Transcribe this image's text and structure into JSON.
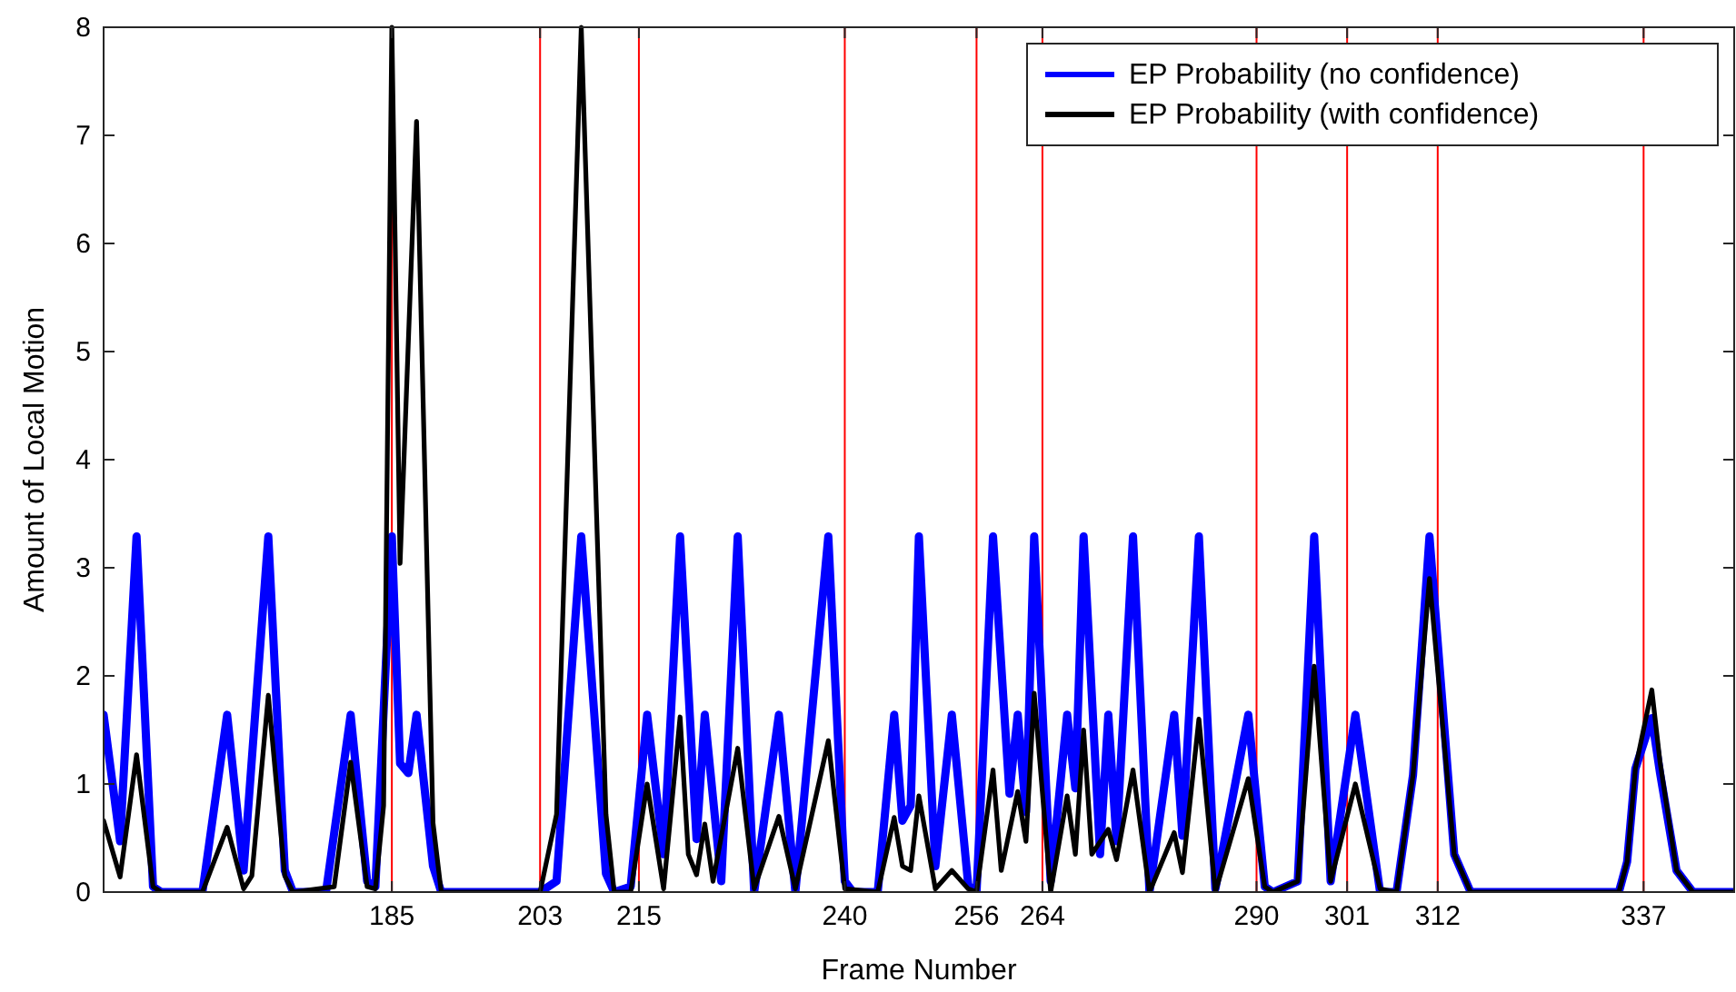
{
  "chart_data": {
    "type": "line",
    "xlabel": "Frame Number",
    "ylabel": "Amount of Local Motion",
    "xlim": [
      150,
      348
    ],
    "xticks": [
      185,
      203,
      215,
      240,
      256,
      264,
      290,
      301,
      312,
      337
    ],
    "ylim": [
      0,
      8
    ],
    "yticks": [
      0,
      1,
      2,
      3,
      4,
      5,
      6,
      7,
      8
    ],
    "grid": false,
    "legend": "top right",
    "marker": "none",
    "line_style": "solid",
    "ref_lines": [
      {
        "axis": "x",
        "value": 185,
        "color": "#ff0000"
      },
      {
        "axis": "x",
        "value": 203,
        "color": "#ff0000"
      },
      {
        "axis": "x",
        "value": 215,
        "color": "#ff0000"
      },
      {
        "axis": "x",
        "value": 240,
        "color": "#ff0000"
      },
      {
        "axis": "x",
        "value": 256,
        "color": "#ff0000"
      },
      {
        "axis": "x",
        "value": 264,
        "color": "#ff0000"
      },
      {
        "axis": "x",
        "value": 290,
        "color": "#ff0000"
      },
      {
        "axis": "x",
        "value": 301,
        "color": "#ff0000"
      },
      {
        "axis": "x",
        "value": 312,
        "color": "#ff0000"
      },
      {
        "axis": "x",
        "value": 337,
        "color": "#ff0000"
      }
    ],
    "series": [
      {
        "name": "EP Probability (no confidence)",
        "color": "#0000ff",
        "x": [
          150,
          152,
          154,
          156,
          157,
          162,
          165,
          167,
          170,
          172,
          173,
          177,
          180,
          182,
          183,
          185,
          186,
          187,
          188,
          190,
          191,
          203,
          205,
          208,
          211,
          212,
          214,
          216,
          218,
          220,
          222,
          223,
          225,
          227,
          229,
          232,
          234,
          238,
          240,
          241,
          244,
          246,
          247,
          248,
          249,
          251,
          253,
          255,
          256,
          258,
          260,
          261,
          262,
          263,
          265,
          267,
          268,
          269,
          271,
          272,
          273,
          275,
          277,
          280,
          281,
          283,
          285,
          289,
          291,
          292,
          295,
          297,
          299,
          302,
          305,
          307,
          309,
          311,
          314,
          316,
          334,
          335,
          336,
          338,
          339,
          341,
          343,
          348
        ],
        "values": [
          1.64,
          0.47,
          3.29,
          0.05,
          0,
          0,
          1.64,
          0.2,
          3.29,
          0.2,
          0,
          0,
          1.64,
          0.1,
          0.05,
          3.29,
          1.19,
          1.1,
          1.64,
          0.24,
          0,
          0,
          0.1,
          3.29,
          0.17,
          0,
          0.05,
          1.64,
          0.35,
          3.29,
          0.49,
          1.64,
          0.1,
          3.29,
          0,
          1.64,
          0,
          3.29,
          0.1,
          0,
          0,
          1.64,
          0.66,
          0.8,
          3.29,
          0.24,
          1.64,
          0.06,
          0,
          3.29,
          0.91,
          1.64,
          0.74,
          3.29,
          0.1,
          1.64,
          0.96,
          3.29,
          0.35,
          1.64,
          0.47,
          3.29,
          0,
          1.64,
          0.52,
          3.29,
          0.03,
          1.64,
          0.05,
          0,
          0.1,
          3.29,
          0.1,
          1.64,
          0,
          0,
          1.08,
          3.29,
          0.35,
          0,
          0,
          0.28,
          1.14,
          1.61,
          1.1,
          0.2,
          0,
          0
        ]
      },
      {
        "name": "EP Probability (with confidence)",
        "color": "#000000",
        "x": [
          150,
          152,
          154,
          156,
          157,
          162,
          165,
          167,
          168,
          170,
          172,
          173,
          178,
          180,
          182,
          183,
          184,
          185,
          186,
          188,
          190,
          191,
          203,
          205,
          208,
          211,
          212,
          214,
          216,
          218,
          220,
          221,
          222,
          223,
          224,
          227,
          229,
          232,
          234,
          238,
          240,
          244,
          246,
          247,
          248,
          249,
          251,
          253,
          255,
          256,
          258,
          259,
          261,
          262,
          263,
          265,
          267,
          268,
          269,
          270,
          272,
          273,
          275,
          277,
          280,
          281,
          283,
          285,
          289,
          291,
          292,
          295,
          297,
          299,
          302,
          305,
          307,
          309,
          311,
          314,
          316,
          334,
          335,
          336,
          338,
          339,
          341,
          343,
          348
        ],
        "values": [
          0.66,
          0.14,
          1.27,
          0.05,
          0,
          0,
          0.6,
          0.03,
          0.15,
          1.82,
          0.15,
          0,
          0.05,
          1.2,
          0.05,
          0.03,
          0.8,
          8,
          3.04,
          7.13,
          0.64,
          0,
          0,
          0.72,
          8,
          0.72,
          0,
          0,
          1.0,
          0.03,
          1.62,
          0.35,
          0.16,
          0.63,
          0.1,
          1.33,
          0.03,
          0.7,
          0.03,
          1.4,
          0.03,
          0,
          0.69,
          0.24,
          0.2,
          0.89,
          0.03,
          0.2,
          0.03,
          0,
          1.13,
          0.2,
          0.93,
          0.47,
          1.84,
          0,
          0.89,
          0.35,
          1.5,
          0.35,
          0.58,
          0.3,
          1.13,
          0,
          0.55,
          0.18,
          1.6,
          0,
          1.05,
          0.05,
          0,
          0.1,
          2.09,
          0.1,
          1.0,
          0.03,
          0,
          1.08,
          2.9,
          0.35,
          0,
          0,
          0.28,
          1.14,
          1.87,
          1.2,
          0.2,
          0,
          0
        ]
      }
    ]
  }
}
